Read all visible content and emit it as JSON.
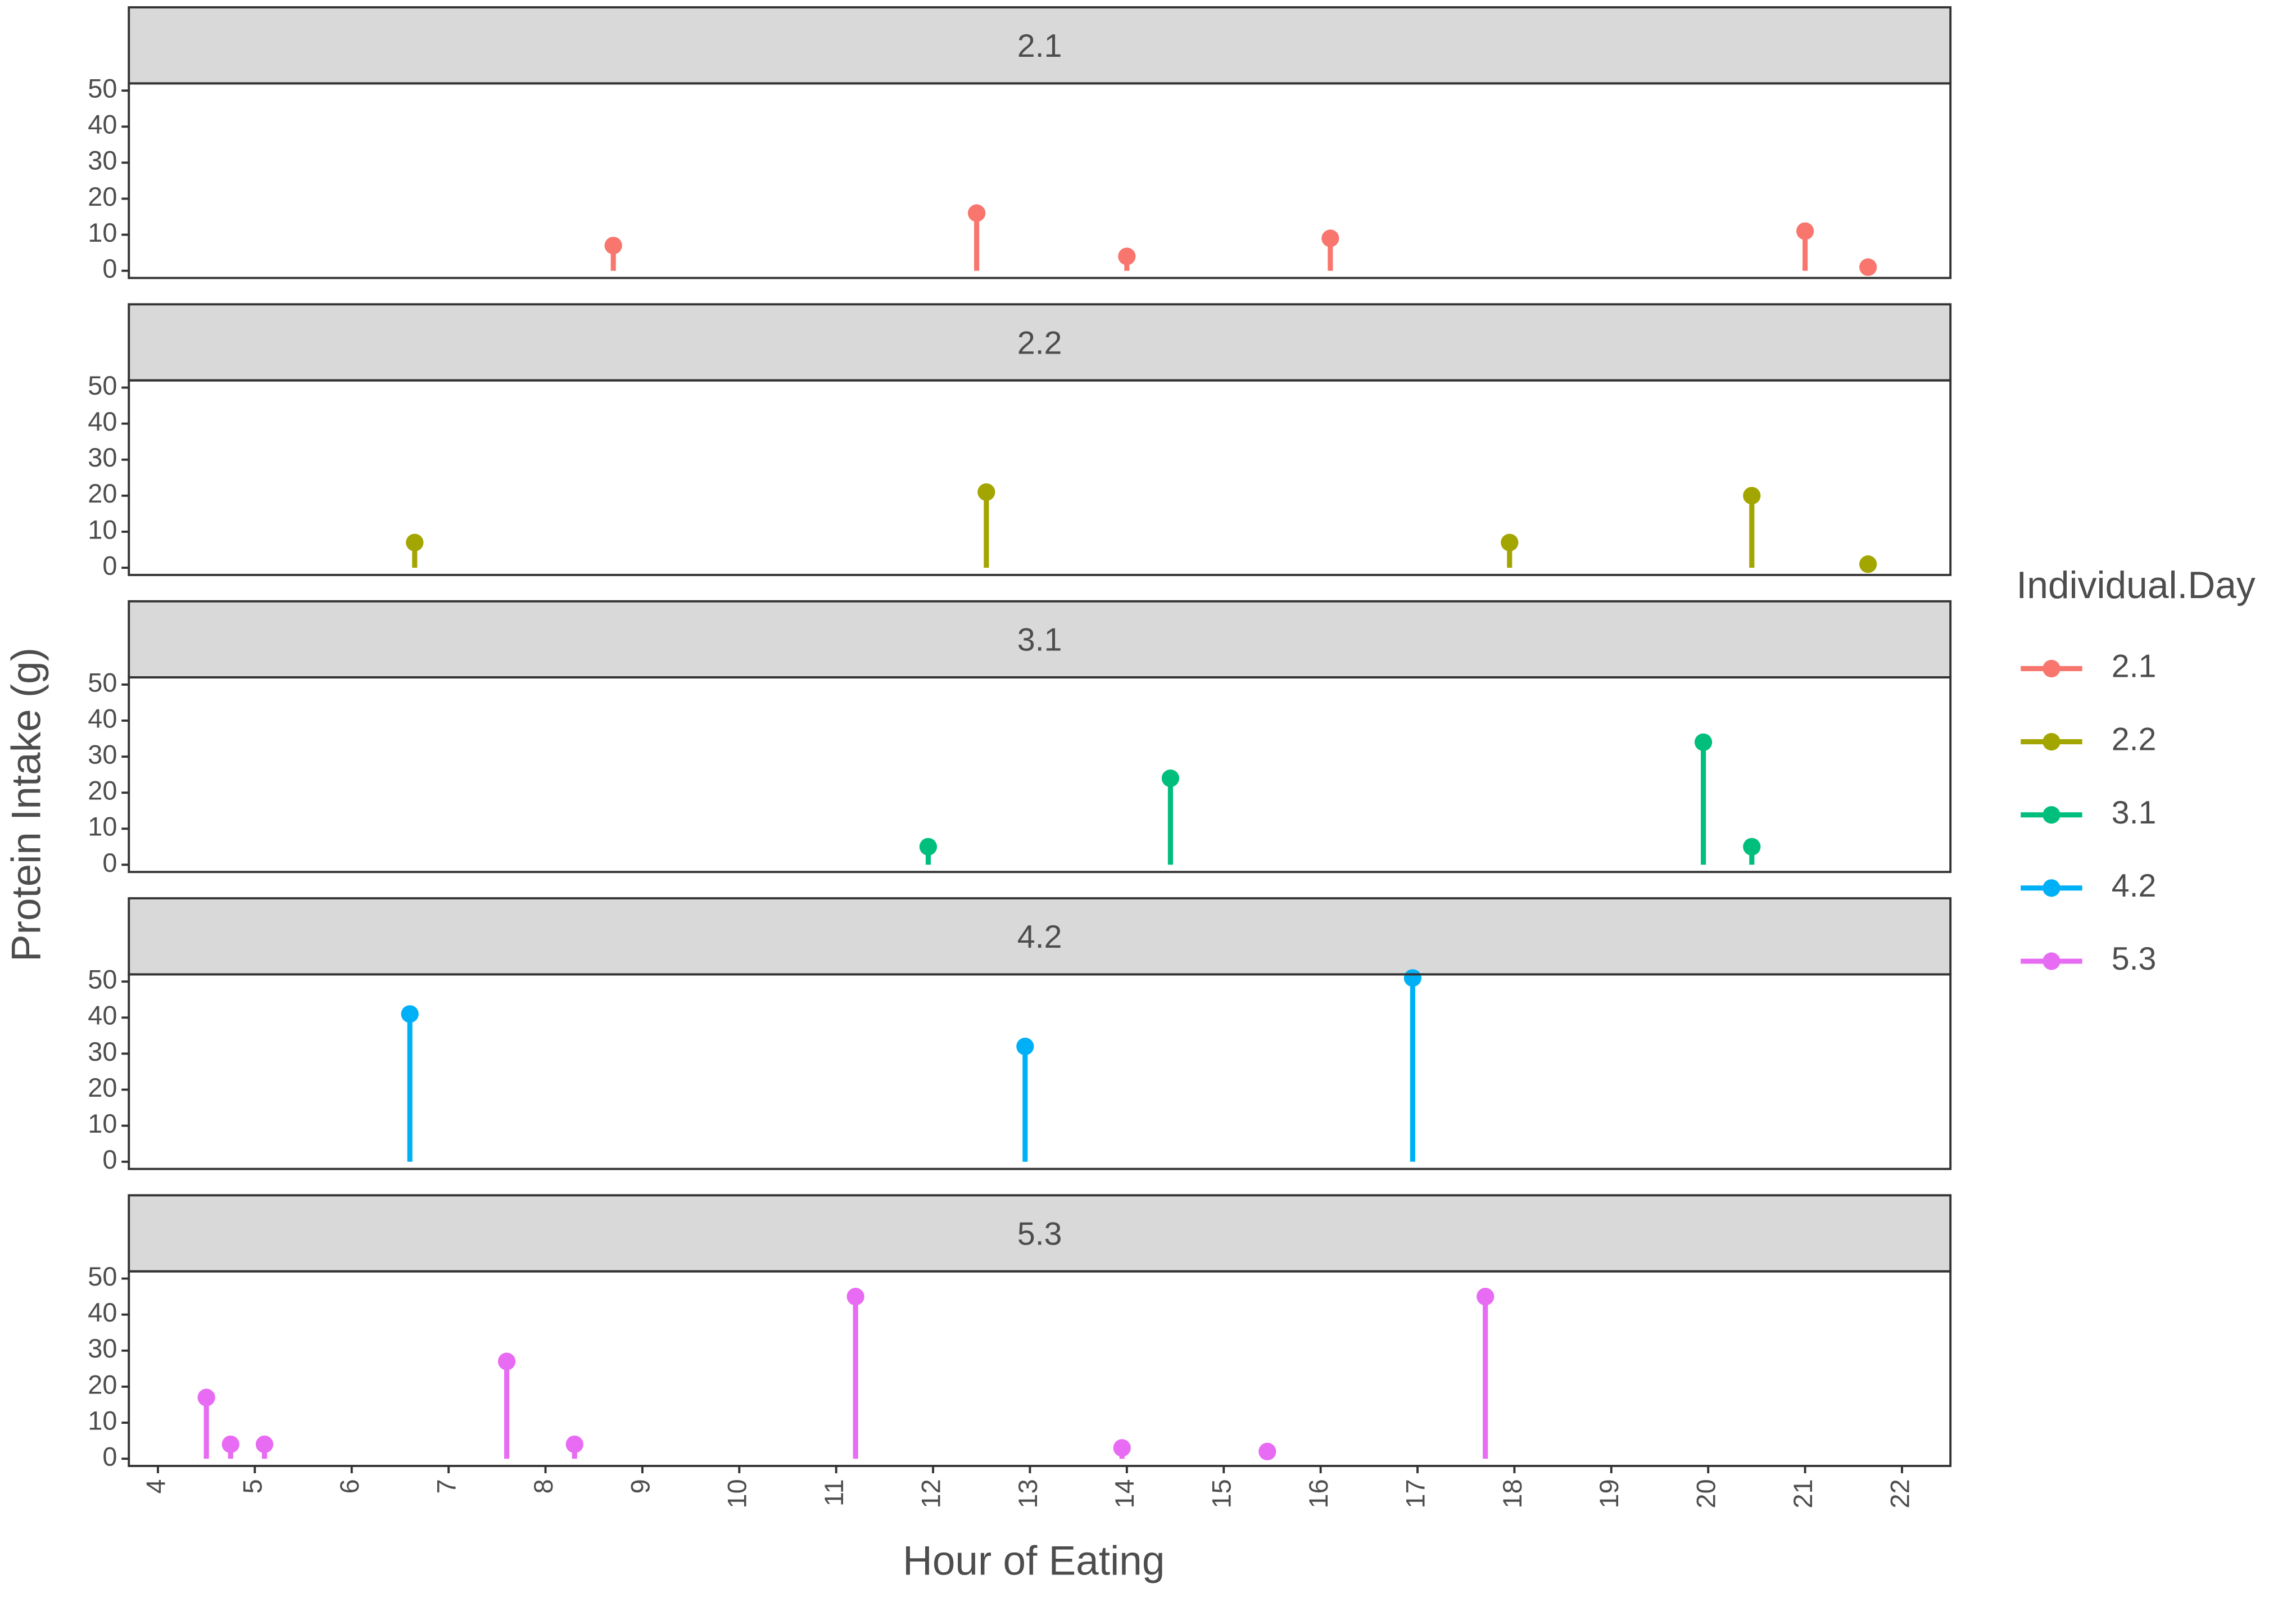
{
  "chart_data": {
    "type": "lollipop",
    "x_label": "Hour of Eating",
    "y_label": "Protein Intake (g)",
    "legend_title": "Individual.Day",
    "xlim": [
      3.7,
      22.5
    ],
    "xticks": [
      4,
      5,
      6,
      7,
      8,
      9,
      10,
      11,
      12,
      13,
      14,
      15,
      16,
      17,
      18,
      19,
      20,
      21,
      22
    ],
    "ylim": [
      -2,
      52
    ],
    "yticks": [
      0,
      10,
      20,
      30,
      40,
      50
    ],
    "series": [
      {
        "name": "2.1",
        "color": "#F8766D",
        "x": [
          8.7,
          12.45,
          14.0,
          16.1,
          21.0,
          21.65
        ],
        "values": [
          7,
          16,
          4,
          9,
          11,
          1
        ]
      },
      {
        "name": "2.2",
        "color": "#A3A500",
        "x": [
          6.65,
          12.55,
          17.95,
          20.45,
          21.65
        ],
        "values": [
          7,
          21,
          7,
          20,
          1
        ]
      },
      {
        "name": "3.1",
        "color": "#00BF7D",
        "x": [
          11.95,
          14.45,
          19.95,
          20.45
        ],
        "values": [
          5,
          24,
          34,
          5
        ]
      },
      {
        "name": "4.2",
        "color": "#00B0F6",
        "x": [
          6.6,
          12.95,
          16.95
        ],
        "values": [
          41,
          32,
          51
        ]
      },
      {
        "name": "5.3",
        "color": "#E76BF3",
        "x": [
          4.5,
          4.75,
          5.1,
          7.6,
          8.3,
          11.2,
          13.95,
          15.45,
          17.7
        ],
        "values": [
          17,
          4,
          4,
          27,
          4,
          45,
          3,
          2,
          45
        ]
      }
    ]
  }
}
